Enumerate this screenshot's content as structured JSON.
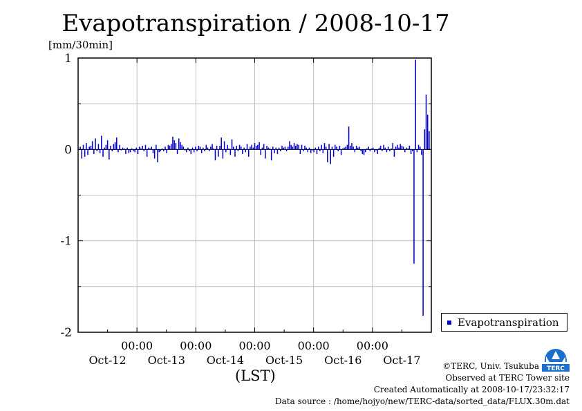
{
  "title": "Evapotranspiration / 2008-10-17",
  "unit_label": "[mm/30min]",
  "legend": {
    "label": "Evapotranspiration",
    "color": "#0000cc"
  },
  "credits": {
    "copyright": "©TERC, Univ. Tsukuba",
    "site": "Observed at TERC Tower site",
    "created": "Created Automatically at 2008-10-17/23:32:17",
    "source": "Data source : /home/hojyo/new/TERC-data/sorted_data/FLUX.30m.dat"
  },
  "logo_text": "TERC",
  "chart_data": {
    "type": "bar",
    "title": "Evapotranspiration / 2008-10-17",
    "ylabel": "[mm/30min]",
    "xlabel": "(LST)",
    "ylim": [
      -2,
      1
    ],
    "yticks": [
      1,
      0,
      -1,
      -2
    ],
    "y_tick_labels": [
      "1",
      "0",
      "-1",
      "-2"
    ],
    "x_tick_time_labels": [
      "00:00",
      "00:00",
      "00:00",
      "00:00",
      "00:00"
    ],
    "x_day_labels": [
      "Oct-12",
      "Oct-13",
      "Oct-14",
      "Oct-15",
      "Oct-16",
      "Oct-17"
    ],
    "grid": true,
    "legend_position": "right",
    "series": [
      {
        "name": "Evapotranspiration",
        "color": "#0000cc",
        "interval": "30min",
        "values": [
          0.03,
          -0.1,
          0.05,
          -0.08,
          0.07,
          -0.06,
          0.03,
          0.04,
          0.09,
          -0.05,
          0.12,
          -0.02,
          0.06,
          -0.04,
          0.15,
          -0.08,
          0.02,
          0.05,
          0.1,
          -0.11,
          0.04,
          -0.02,
          0.06,
          0.08,
          0.13,
          -0.03,
          0.05,
          -0.01,
          0.02,
          0.01,
          -0.05,
          0.02,
          -0.04,
          -0.03,
          0.01,
          -0.02,
          -0.03,
          0.02,
          -0.05,
          0.03,
          0.01,
          0.04,
          -0.02,
          0.05,
          -0.08,
          0.02,
          0.01,
          0.03,
          -0.04,
          -0.1,
          0.05,
          -0.14,
          -0.03,
          -0.02,
          0.01,
          -0.02,
          0.03,
          -0.04,
          0.05,
          0.04,
          0.06,
          0.14,
          0.1,
          0.07,
          -0.05,
          0.12,
          0.08,
          0.05,
          0.03,
          -0.01,
          -0.03,
          0.02,
          -0.02,
          -0.05,
          0.02,
          -0.03,
          0.03,
          -0.02,
          0.04,
          0.03,
          -0.04,
          0.02,
          -0.02,
          0.05,
          0.02,
          -0.02,
          0.03,
          0.06,
          0.01,
          -0.12,
          0.04,
          -0.08,
          0.04,
          0.13,
          -0.1,
          0.09,
          -0.03,
          0.05,
          0.01,
          -0.06,
          0.11,
          0.03,
          -0.08,
          0.04,
          -0.02,
          0.05,
          0.03,
          -0.05,
          0.02,
          -0.03,
          0.06,
          -0.08,
          0.03,
          0.05,
          0.02,
          0.07,
          0.04,
          0.05,
          0.08,
          -0.06,
          0.02,
          0.06,
          -0.1,
          0.04,
          0.02,
          0.01,
          -0.12,
          0.03,
          -0.04,
          0.02,
          -0.05,
          0.02,
          -0.02,
          0.04,
          0.02,
          0.03,
          -0.02,
          0.03,
          0.09,
          0.05,
          0.03,
          0.07,
          0.04,
          0.06,
          0.05,
          -0.05,
          0.05,
          -0.02,
          0.04,
          0.02,
          -0.03,
          0.02,
          -0.04,
          -0.01,
          -0.03,
          0.02,
          -0.05,
          0.03,
          -0.02,
          0.05,
          -0.04,
          0.07,
          0.03,
          -0.14,
          0.06,
          -0.16,
          0.03,
          -0.08,
          0.05,
          0.03,
          -0.02,
          0.04,
          -0.06,
          0.01,
          0.02,
          0.03,
          0.05,
          0.25,
          0.04,
          0.07,
          0.03,
          -0.03,
          0.04,
          0.02,
          0.03,
          -0.02,
          -0.05,
          -0.06,
          -0.03,
          0.01,
          0.03,
          -0.02,
          0.01,
          0.02,
          -0.03,
          -0.01,
          -0.05,
          0.02,
          0.04,
          -0.02,
          0.05,
          0.02,
          -0.03,
          0.03,
          -0.02,
          0.01,
          0.07,
          -0.08,
          0.03,
          0.05,
          0.02,
          0.06,
          0.04,
          0.03,
          -0.03,
          0.02,
          0.01,
          0.04,
          -0.05,
          -0.02,
          -1.25,
          0.98,
          -0.03,
          0.05,
          0.03,
          -0.06,
          -1.82,
          0.22,
          0.6,
          0.38,
          0.2
        ]
      }
    ]
  }
}
